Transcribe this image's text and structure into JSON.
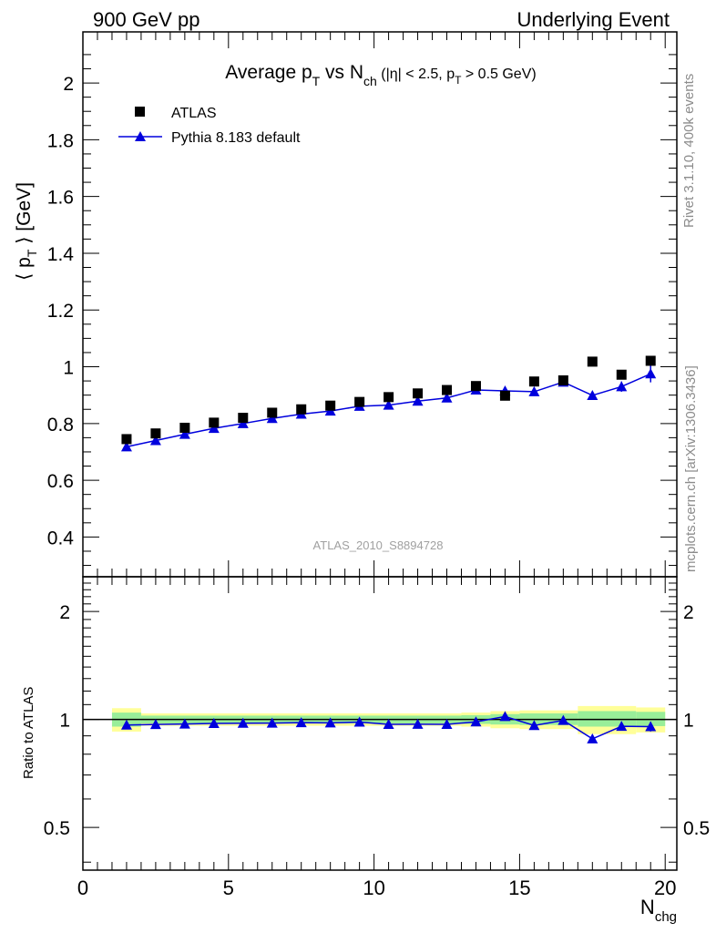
{
  "chart_data": {
    "type": "scatter",
    "header_left": "900 GeV pp",
    "header_right": "Underlying Event",
    "title": {
      "main": "Average p",
      "sub_T": "T",
      "vs": " vs N",
      "sub_ch": "ch",
      "cuts_1": " (|η| < 2.5, p",
      "cuts_sub": "T",
      "cuts_2": " > 0.5 GeV)"
    },
    "ylabel_main": "⟨ p_T ⟩ [GeV]",
    "ylabel_ratio": "Ratio to ATLAS",
    "xlabel": "N_chg",
    "side_text_top": "Rivet 3.1.10,  400k events",
    "side_text_bottom": "mcplots.cern.ch [arXiv:1306.3436]",
    "analysis_id": "ATLAS_2010_S8894728",
    "xlim": [
      0,
      20.4
    ],
    "ylim": [
      0.26,
      2.18
    ],
    "ratio_ylim": [
      0.38,
      2.5
    ],
    "x_ticks": [
      0,
      5,
      10,
      15,
      20
    ],
    "y_ticks": [
      0.4,
      0.6,
      0.8,
      1,
      1.2,
      1.4,
      1.6,
      1.8,
      2
    ],
    "y_tick_labels": [
      "0.4",
      "0.6",
      "0.8",
      "1",
      "1.2",
      "1.4",
      "1.6",
      "1.8",
      "2"
    ],
    "ratio_ticks": [
      0.5,
      1,
      2
    ],
    "ratio_tick_labels": [
      "0.5",
      "1",
      "2"
    ],
    "x": [
      1.5,
      2.5,
      3.5,
      4.5,
      5.5,
      6.5,
      7.5,
      8.5,
      9.5,
      10.5,
      11.5,
      12.5,
      13.5,
      14.5,
      15.5,
      16.5,
      17.5,
      18.5,
      19.5
    ],
    "series": [
      {
        "name": "ATLAS",
        "marker": "square",
        "color": "#000000",
        "values": [
          0.745,
          0.765,
          0.785,
          0.803,
          0.82,
          0.838,
          0.85,
          0.863,
          0.876,
          0.893,
          0.906,
          0.918,
          0.932,
          0.898,
          0.948,
          0.952,
          1.018,
          0.972,
          1.021
        ]
      },
      {
        "name": "Pythia 8.183 default",
        "marker": "triangle",
        "color": "#0000dd",
        "values": [
          0.718,
          0.74,
          0.762,
          0.783,
          0.8,
          0.818,
          0.833,
          0.844,
          0.861,
          0.865,
          0.879,
          0.89,
          0.918,
          0.915,
          0.912,
          0.946,
          0.899,
          0.93,
          0.975
        ],
        "errors": [
          0.004,
          0.004,
          0.004,
          0.004,
          0.004,
          0.004,
          0.004,
          0.004,
          0.005,
          0.005,
          0.006,
          0.006,
          0.007,
          0.008,
          0.009,
          0.011,
          0.013,
          0.018,
          0.03
        ]
      }
    ],
    "ratio_values": [
      0.965,
      0.968,
      0.971,
      0.975,
      0.976,
      0.977,
      0.98,
      0.978,
      0.983,
      0.969,
      0.97,
      0.969,
      0.985,
      1.019,
      0.962,
      0.994,
      0.883,
      0.957,
      0.955
    ],
    "ratio_band_bins": [
      {
        "x0": 1,
        "x1": 2,
        "yellow": [
          0.925,
          1.075
        ],
        "green": [
          0.955,
          1.045
        ]
      },
      {
        "x0": 2,
        "x1": 13,
        "yellow": [
          0.96,
          1.04
        ],
        "green": [
          0.975,
          1.025
        ]
      },
      {
        "x0": 13,
        "x1": 14,
        "yellow": [
          0.955,
          1.045
        ],
        "green": [
          0.972,
          1.028
        ]
      },
      {
        "x0": 14,
        "x1": 15,
        "yellow": [
          0.945,
          1.055
        ],
        "green": [
          0.968,
          1.035
        ]
      },
      {
        "x0": 15,
        "x1": 17,
        "yellow": [
          0.94,
          1.06
        ],
        "green": [
          0.965,
          1.04
        ]
      },
      {
        "x0": 17,
        "x1": 19,
        "yellow": [
          0.91,
          1.09
        ],
        "green": [
          0.955,
          1.055
        ]
      },
      {
        "x0": 19,
        "x1": 20,
        "yellow": [
          0.92,
          1.08
        ],
        "green": [
          0.958,
          1.05
        ]
      }
    ],
    "colors": {
      "band_yellow": "#ffff99",
      "band_green": "#99ee99",
      "mc_line": "#0000dd",
      "side_text": "#8c8c8c"
    }
  }
}
